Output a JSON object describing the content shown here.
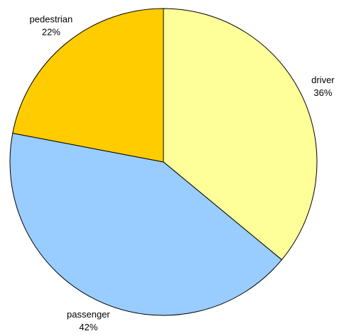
{
  "chart_data": {
    "type": "pie",
    "categories": [
      "driver",
      "passenger",
      "pedestrian"
    ],
    "values": [
      36,
      42,
      22
    ],
    "value_labels": [
      "36%",
      "42%",
      "22%"
    ],
    "colors": [
      "#ffff99",
      "#99ccff",
      "#ffcc00"
    ]
  }
}
